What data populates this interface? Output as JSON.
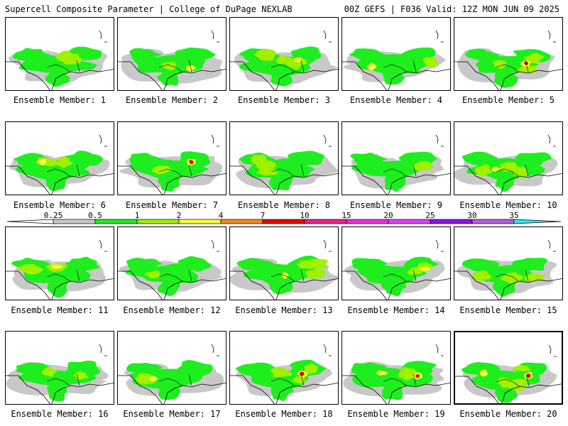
{
  "header": {
    "left": "Supercell Composite Parameter | College of DuPage NEXLAB",
    "right": "00Z GEFS | F036 Valid: 12Z MON JUN 09 2025"
  },
  "member_label_prefix": "Ensemble Member: ",
  "members": [
    {
      "id": 1
    },
    {
      "id": 2
    },
    {
      "id": 3
    },
    {
      "id": 4
    },
    {
      "id": 5
    },
    {
      "id": 6
    },
    {
      "id": 7
    },
    {
      "id": 8
    },
    {
      "id": 9
    },
    {
      "id": 10
    },
    {
      "id": 11
    },
    {
      "id": 12
    },
    {
      "id": 13
    },
    {
      "id": 14
    },
    {
      "id": 15
    },
    {
      "id": 16
    },
    {
      "id": 17
    },
    {
      "id": 18
    },
    {
      "id": 19
    },
    {
      "id": 20
    }
  ],
  "legend": {
    "ticks": [
      "0.25",
      "0.5",
      "1",
      "2",
      "4",
      "7",
      "10",
      "15",
      "20",
      "25",
      "30",
      "35"
    ],
    "colors": [
      "#c8c8c8",
      "#1eee1e",
      "#a0f000",
      "#fcfc3a",
      "#f28a1c",
      "#ee0000",
      "#f0208a",
      "#f02ce4",
      "#e040ff",
      "#8c10ee",
      "#b060e0",
      "#30e8f0"
    ],
    "low_color": "#ffffff"
  }
}
